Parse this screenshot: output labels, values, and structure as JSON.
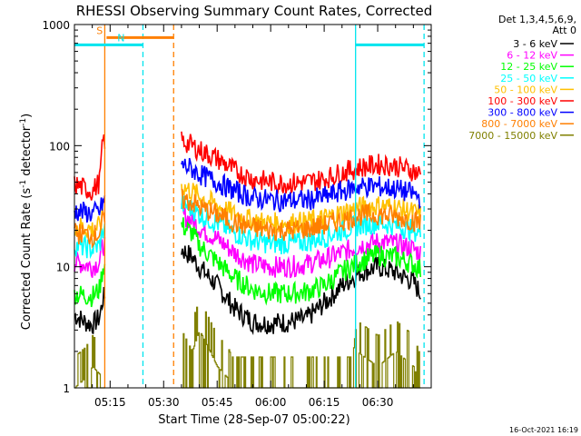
{
  "chart_data": {
    "type": "line",
    "title": "RHESSI Observing Summary Count Rates, Corrected",
    "ylabel_parts": [
      "Corrected Count Rate (s",
      "-1",
      " detector",
      "-1",
      ")"
    ],
    "xlabel": "Start Time (28-Sep-07 05:00:22)",
    "footer": "16-Oct-2021 16:19",
    "yscale": "log",
    "ylim": [
      1,
      1000
    ],
    "xlim_minutes": [
      5.0,
      105.0
    ],
    "y_ticks": [
      {
        "value": 1,
        "label": "1"
      },
      {
        "value": 10,
        "label": "10"
      },
      {
        "value": 100,
        "label": "100"
      },
      {
        "value": 1000,
        "label": "1000"
      }
    ],
    "x_ticks": [
      {
        "value": 15,
        "label": "05:15"
      },
      {
        "value": 30,
        "label": "05:30"
      },
      {
        "value": 45,
        "label": "05:45"
      },
      {
        "value": 60,
        "label": "06:00"
      },
      {
        "value": 75,
        "label": "06:15"
      },
      {
        "value": 90,
        "label": "06:30"
      }
    ],
    "legend_header": [
      "Det 1,3,4,5,6,9,",
      "Att 0"
    ],
    "legend_position": "right",
    "data_gaps_minutes": [
      [
        13.5,
        34.8
      ]
    ],
    "flags": [
      {
        "label": "S",
        "color": "#ff7f00",
        "start": 14.0,
        "end": 32.8,
        "level": 780
      },
      {
        "label": "N",
        "color": "#00e5ee",
        "start": 5.0,
        "end": 24.2,
        "level": 680
      },
      {
        "label": "",
        "color": "#00e5ee",
        "start": 83.8,
        "end": 103.0,
        "level": 680
      }
    ],
    "vlines": [
      {
        "x": 13.5,
        "color": "#ff7f00",
        "dashed": false
      },
      {
        "x": 32.8,
        "color": "#ff7f00",
        "dashed": true
      },
      {
        "x": 24.2,
        "color": "#00e5ee",
        "dashed": true
      },
      {
        "x": 83.8,
        "color": "#00e5ee",
        "dashed": false
      },
      {
        "x": 103.0,
        "color": "#00e5ee",
        "dashed": true
      }
    ],
    "series": [
      {
        "name": "3 - 6 keV",
        "color": "#000000",
        "x": [
          5,
          8,
          10,
          12,
          12.5,
          13,
          35,
          38,
          40,
          45,
          50,
          55,
          60,
          65,
          70,
          75,
          80,
          85,
          90,
          95,
          100,
          102
        ],
        "y": [
          4.0,
          3.5,
          3.3,
          3.8,
          4.5,
          5.5,
          14,
          12,
          10,
          7,
          4.5,
          3.5,
          3.4,
          3.5,
          3.7,
          5,
          7,
          9,
          10,
          9,
          7.5,
          6
        ]
      },
      {
        "name": "6 - 12 keV",
        "color": "#ff00ff",
        "x": [
          5,
          8,
          10,
          12,
          12.5,
          13,
          35,
          38,
          40,
          45,
          50,
          55,
          60,
          65,
          70,
          75,
          80,
          85,
          90,
          95,
          100,
          102
        ],
        "y": [
          11,
          10.5,
          10,
          11,
          13,
          15,
          27,
          24,
          21,
          17,
          13,
          10.5,
          10,
          10,
          10.5,
          11.5,
          13,
          15,
          16,
          15.5,
          14,
          13
        ]
      },
      {
        "name": "12 - 25 keV",
        "color": "#00ff00",
        "x": [
          5,
          8,
          10,
          12,
          12.5,
          13,
          35,
          38,
          40,
          45,
          50,
          55,
          60,
          65,
          70,
          75,
          80,
          85,
          90,
          95,
          100,
          102
        ],
        "y": [
          6,
          5.8,
          5.7,
          6.5,
          8,
          10,
          22,
          19,
          15,
          11,
          8,
          6.5,
          6,
          6,
          6.2,
          7,
          9,
          11,
          12.5,
          12,
          10.5,
          9.5
        ]
      },
      {
        "name": "25 - 50 keV",
        "color": "#00ffff",
        "x": [
          5,
          8,
          10,
          12,
          12.5,
          13,
          35,
          38,
          40,
          45,
          50,
          55,
          60,
          65,
          70,
          75,
          80,
          85,
          90,
          95,
          100,
          102
        ],
        "y": [
          15,
          14.5,
          14,
          15,
          17,
          20,
          33,
          30,
          27,
          23,
          19,
          16.5,
          15.5,
          15.5,
          16,
          17.5,
          20,
          22,
          23,
          22,
          20,
          19
        ]
      },
      {
        "name": "50 - 100 keV",
        "color": "#ffc000",
        "x": [
          5,
          8,
          10,
          12,
          12.5,
          13,
          35,
          38,
          40,
          45,
          50,
          55,
          60,
          65,
          70,
          75,
          80,
          85,
          90,
          95,
          100,
          102
        ],
        "y": [
          22,
          21,
          20.5,
          21.5,
          24,
          28,
          46,
          42,
          38,
          32,
          27,
          24,
          23,
          23,
          23.5,
          25,
          28,
          31,
          32,
          31,
          28,
          27
        ]
      },
      {
        "name": "100 - 300 keV",
        "color": "#ff0000",
        "x": [
          5,
          8,
          10,
          12,
          12.5,
          13,
          35,
          38,
          40,
          45,
          50,
          55,
          60,
          65,
          70,
          75,
          80,
          85,
          90,
          95,
          100,
          102
        ],
        "y": [
          48,
          44,
          42,
          50,
          75,
          110,
          110,
          100,
          92,
          78,
          62,
          53,
          50,
          49,
          50,
          53,
          60,
          66,
          70,
          68,
          62,
          58
        ]
      },
      {
        "name": "300 - 800 keV",
        "color": "#0000ff",
        "x": [
          5,
          8,
          10,
          12,
          12.5,
          13,
          35,
          38,
          40,
          45,
          50,
          55,
          60,
          65,
          70,
          75,
          80,
          85,
          90,
          95,
          100,
          102
        ],
        "y": [
          29,
          28,
          27.5,
          28.5,
          31,
          34,
          70,
          64,
          58,
          50,
          42,
          37,
          35.5,
          35,
          35.5,
          37.5,
          42,
          46,
          46,
          44,
          40,
          37
        ]
      },
      {
        "name": "800 - 7000 keV",
        "color": "#ff7f00",
        "x": [
          5,
          8,
          10,
          12,
          12.5,
          13,
          35,
          38,
          40,
          45,
          50,
          55,
          60,
          65,
          70,
          75,
          80,
          85,
          90,
          95,
          100,
          102
        ],
        "y": [
          19,
          18.5,
          18,
          19,
          21,
          24,
          36,
          34,
          31,
          27,
          23,
          21,
          20,
          20,
          20.5,
          22,
          24,
          26.5,
          27,
          26,
          24,
          23
        ]
      },
      {
        "name": "7000 - 15000 keV",
        "color": "#808000",
        "x": [
          5,
          8,
          10,
          12,
          12.5,
          13,
          35,
          38,
          40,
          45,
          48,
          49,
          50,
          55,
          60,
          65,
          70,
          75,
          80,
          83,
          84,
          90,
          95,
          100,
          102
        ],
        "y": [
          1,
          1.2,
          1.5,
          1.3,
          1,
          1,
          3,
          2,
          3,
          1.5,
          1.2,
          1,
          1,
          1,
          1,
          1,
          1,
          1,
          1,
          1,
          2,
          1.5,
          2,
          1.5,
          1
        ]
      }
    ]
  }
}
